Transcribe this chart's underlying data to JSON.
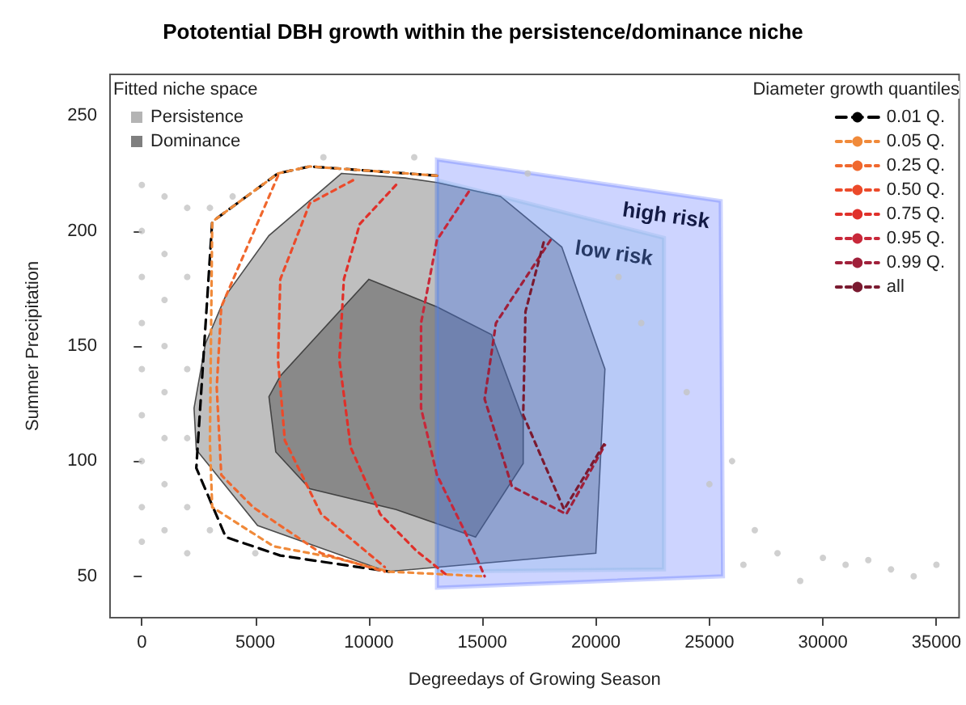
{
  "chart_data": {
    "type": "line",
    "title": "Pototential DBH growth within the persistence/dominance niche",
    "xlabel": "Degreedays of Growing Season",
    "ylabel": "Summer Precipitation",
    "legend_title": "Diameter growth quantiles",
    "legend": "top right",
    "grid": false,
    "annotations": [
      "Fitted niche space",
      "high risk",
      "low risk"
    ],
    "xlim": [
      -1400,
      36000
    ],
    "ylim": [
      32,
      268
    ],
    "xticks": [
      0,
      5000,
      10000,
      15000,
      20000,
      25000,
      30000,
      35000
    ],
    "yticks": [
      50,
      100,
      150,
      200,
      250
    ],
    "series": [
      {
        "type": "scatter",
        "color": "#c4c4c4",
        "x": [
          0,
          0,
          0,
          0,
          0,
          0,
          0,
          0,
          0,
          1000,
          1000,
          1000,
          1000,
          1000,
          1000,
          1000,
          1000,
          2000,
          2000,
          2000,
          2000,
          2000,
          2000,
          3000,
          3000,
          4000,
          5000,
          8000,
          12000,
          17000,
          21000,
          22000,
          24000,
          25000,
          26000,
          26500,
          27000,
          28000,
          29000,
          30000,
          31000,
          32000,
          33000,
          34000,
          35000
        ],
        "values": [
          220,
          200,
          180,
          160,
          140,
          120,
          100,
          80,
          65,
          215,
          190,
          170,
          150,
          130,
          110,
          90,
          70,
          210,
          180,
          140,
          110,
          80,
          60,
          210,
          70,
          215,
          60,
          232,
          232,
          225,
          180,
          160,
          130,
          90,
          100,
          55,
          70,
          60,
          48,
          58,
          55,
          57,
          53,
          50,
          55
        ]
      },
      {
        "type": "area",
        "name": "Persistence",
        "color": "#b4b4b4",
        "x": [
          8800,
          11600,
          13000,
          15800,
          18500,
          20400,
          20000,
          10800,
          5100,
          2400,
          2300,
          2800,
          3700,
          5600
        ],
        "values": [
          225,
          223,
          221,
          215,
          193,
          140,
          60,
          52,
          72,
          105,
          123,
          151,
          172,
          198
        ]
      },
      {
        "type": "area",
        "name": "Dominance",
        "color": "#7f7f7f",
        "x": [
          10000,
          13000,
          15400,
          16800,
          16800,
          14700,
          11200,
          7400,
          5900,
          5600,
          6100
        ],
        "values": [
          179,
          167,
          155,
          118,
          99,
          67,
          79,
          88,
          104,
          128,
          137
        ]
      },
      {
        "type": "area",
        "color": "#1a3cff",
        "x": [
          13000,
          25500,
          25600,
          13000
        ],
        "values": [
          231,
          213,
          50,
          45
        ]
      },
      {
        "type": "area",
        "color": "#6fa8dc",
        "x": [
          13000,
          23000,
          23000,
          13000
        ],
        "values": [
          222,
          197,
          53,
          52
        ]
      },
      {
        "name": "0.01 Q.",
        "color": "#000000",
        "line_style": "dashed",
        "x": [
          13000,
          7400,
          6000,
          3100,
          2400,
          3700,
          6100,
          10900
        ],
        "values": [
          224,
          228,
          225,
          204,
          97,
          67,
          59,
          52
        ]
      },
      {
        "name": "0.05 Q.",
        "color": "#f08a3a",
        "line_style": "dotted",
        "x": [
          13000,
          7400,
          6000,
          3100,
          3000,
          3100,
          5800,
          8500,
          10900,
          15000
        ],
        "values": [
          224,
          228,
          225,
          204,
          108,
          80,
          63,
          58,
          52,
          50
        ]
      },
      {
        "name": "0.25 Q.",
        "color": "#f0682e",
        "line_style": "dotted",
        "x": [
          6000,
          3500,
          3300,
          3500,
          4900,
          7900,
          10700
        ],
        "values": [
          224,
          167,
          132,
          94,
          80,
          60,
          52
        ]
      },
      {
        "name": "0.50 Q.",
        "color": "#ec4a2a",
        "line_style": "dotted",
        "x": [
          9300,
          7400,
          6100,
          6000,
          6300,
          7900,
          10700
        ],
        "values": [
          222,
          212,
          179,
          144,
          109,
          77,
          54
        ]
      },
      {
        "name": "0.75 Q.",
        "color": "#e0302a",
        "line_style": "dotted",
        "x": [
          11200,
          9600,
          8900,
          8700,
          9200,
          10500,
          12100,
          13500
        ],
        "values": [
          220,
          203,
          179,
          144,
          106,
          77,
          61,
          50
        ]
      },
      {
        "name": "0.95 Q.",
        "color": "#c8283a",
        "line_style": "dotted",
        "x": [
          14400,
          13000,
          12300,
          12300,
          13000,
          14400,
          15100
        ],
        "values": [
          217,
          196,
          160,
          123,
          94,
          66,
          50
        ]
      },
      {
        "name": "0.99 Q.",
        "color": "#a0203a",
        "line_style": "dotted",
        "x": [
          18000,
          15600,
          15100,
          16300,
          18700,
          20400
        ],
        "values": [
          196,
          160,
          127,
          89,
          77,
          107
        ]
      },
      {
        "name": "all",
        "color": "#7a1a30",
        "line_style": "dotted",
        "x": [
          17700,
          16900,
          16800,
          18600,
          20400
        ],
        "values": [
          195,
          165,
          120,
          79,
          108
        ]
      }
    ]
  }
}
